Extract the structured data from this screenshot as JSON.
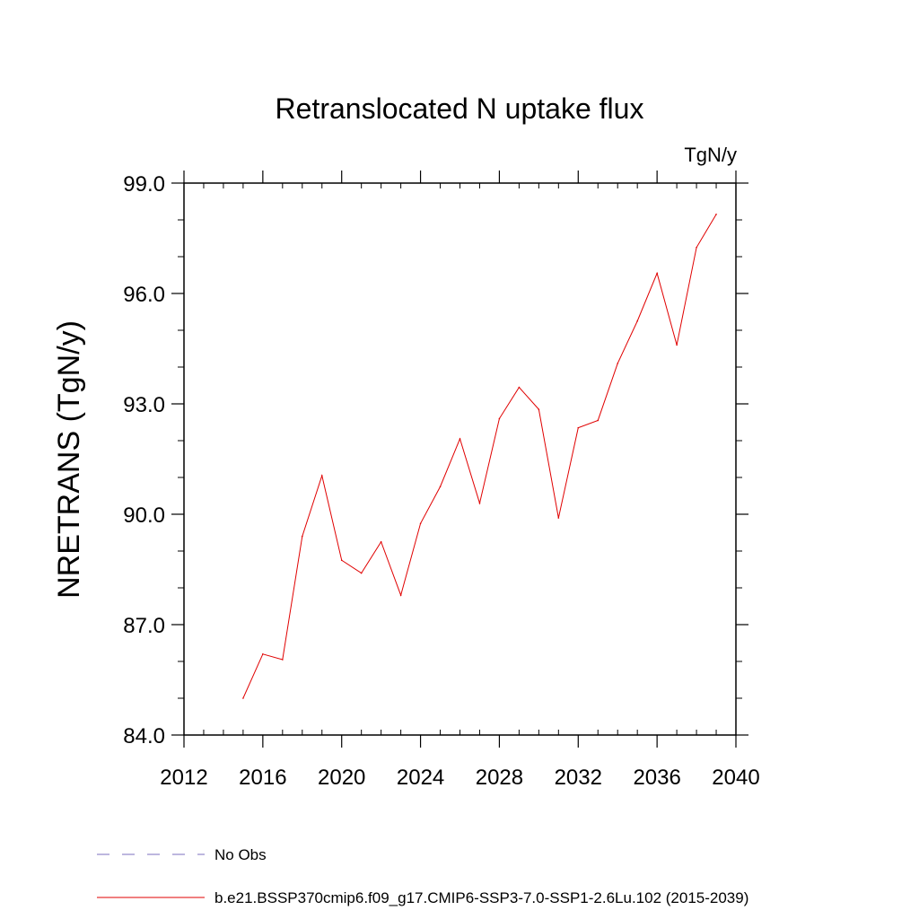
{
  "chart_data": {
    "type": "line",
    "title": "Retranslocated N uptake flux",
    "units": "TgN/y",
    "ylabel": "NRETRANS  (TgN/y)",
    "xlabel": "",
    "xlim": [
      2012,
      2040
    ],
    "ylim": [
      84.0,
      99.0
    ],
    "xticks": [
      2012,
      2016,
      2020,
      2024,
      2028,
      2032,
      2036,
      2040
    ],
    "yticks": [
      "84.0",
      "87.0",
      "90.0",
      "93.0",
      "96.0",
      "99.0"
    ],
    "grid": false,
    "series": [
      {
        "name": "b.e21.BSSP370cmip6.f09_g17.CMIP6-SSP3-7.0-SSP1-2.6Lu.102 (2015-2039)",
        "color": "#e00000",
        "x": [
          2015,
          2016,
          2017,
          2018,
          2019,
          2020,
          2021,
          2022,
          2023,
          2024,
          2025,
          2026,
          2027,
          2028,
          2029,
          2030,
          2031,
          2032,
          2033,
          2034,
          2035,
          2036,
          2037,
          2038,
          2039
        ],
        "values": [
          85.0,
          86.2,
          86.05,
          89.4,
          91.05,
          88.75,
          88.4,
          89.25,
          87.8,
          89.75,
          90.75,
          92.05,
          90.3,
          92.6,
          93.45,
          92.85,
          89.9,
          92.35,
          92.55,
          94.1,
          95.25,
          96.55,
          94.6,
          97.25,
          98.15
        ]
      }
    ],
    "legend": [
      {
        "label": "No Obs",
        "style": "dashed",
        "color": "#7b6fbf"
      },
      {
        "label": "b.e21.BSSP370cmip6.f09_g17.CMIP6-SSP3-7.0-SSP1-2.6Lu.102 (2015-2039)",
        "style": "solid",
        "color": "#e00000"
      }
    ],
    "legend_position": "bottom"
  }
}
